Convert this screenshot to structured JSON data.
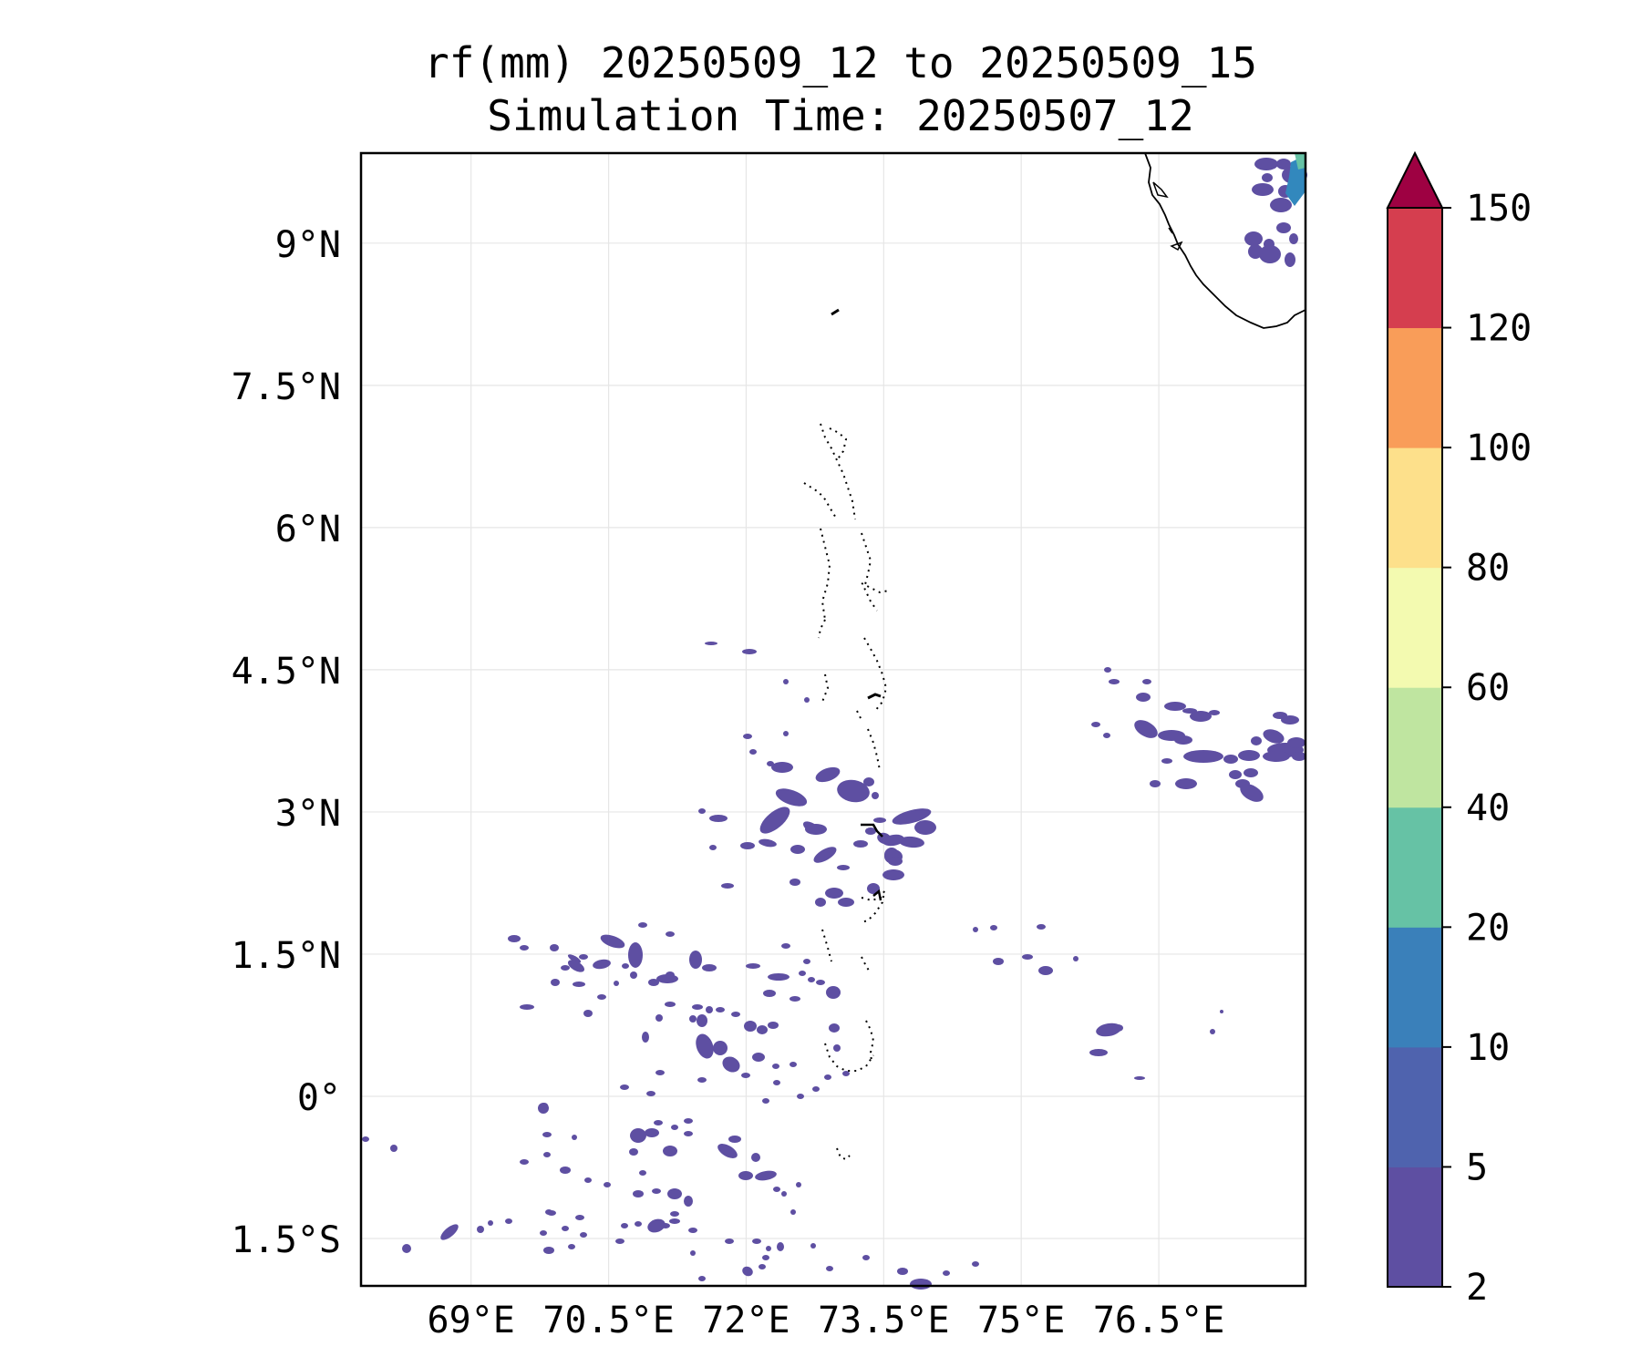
{
  "title": {
    "line1": "rf(mm) 20250509_12 to 20250509_15",
    "line2": "Simulation Time: 20250507_12"
  },
  "map": {
    "lon_range": [
      67.8,
      78.1
    ],
    "lat_range": [
      -2.0,
      9.95
    ],
    "lat_labels": [
      {
        "value": 9.0,
        "text": "9°N"
      },
      {
        "value": 7.5,
        "text": "7.5°N"
      },
      {
        "value": 6.0,
        "text": "6°N"
      },
      {
        "value": 4.5,
        "text": "4.5°N"
      },
      {
        "value": 3.0,
        "text": "3°N"
      },
      {
        "value": 1.5,
        "text": "1.5°N"
      },
      {
        "value": 0.0,
        "text": "0°"
      },
      {
        "value": -1.5,
        "text": "1.5°S"
      }
    ],
    "lon_labels": [
      {
        "value": 69.0,
        "text": "69°E"
      },
      {
        "value": 70.5,
        "text": "70.5°E"
      },
      {
        "value": 72.0,
        "text": "72°E"
      },
      {
        "value": 73.5,
        "text": "73.5°E"
      },
      {
        "value": 75.0,
        "text": "75°E"
      },
      {
        "value": 76.5,
        "text": "76.5°E"
      }
    ],
    "gridlines": true,
    "coastline_color": "#000000",
    "rain_color": "#5e4fa2",
    "rain_color_mid": "#3288bd"
  },
  "colorbar": {
    "extend": "max",
    "levels": [
      "2",
      "5",
      "10",
      "20",
      "40",
      "60",
      "80",
      "100",
      "120",
      "150"
    ],
    "colors": [
      "#5e4fa2",
      "#4f63ae",
      "#3a80ba",
      "#66c2a5",
      "#bfe5a0",
      "#f3fab0",
      "#fde08b",
      "#f99d59",
      "#d53e4f"
    ],
    "extend_color": "#9e0142"
  }
}
